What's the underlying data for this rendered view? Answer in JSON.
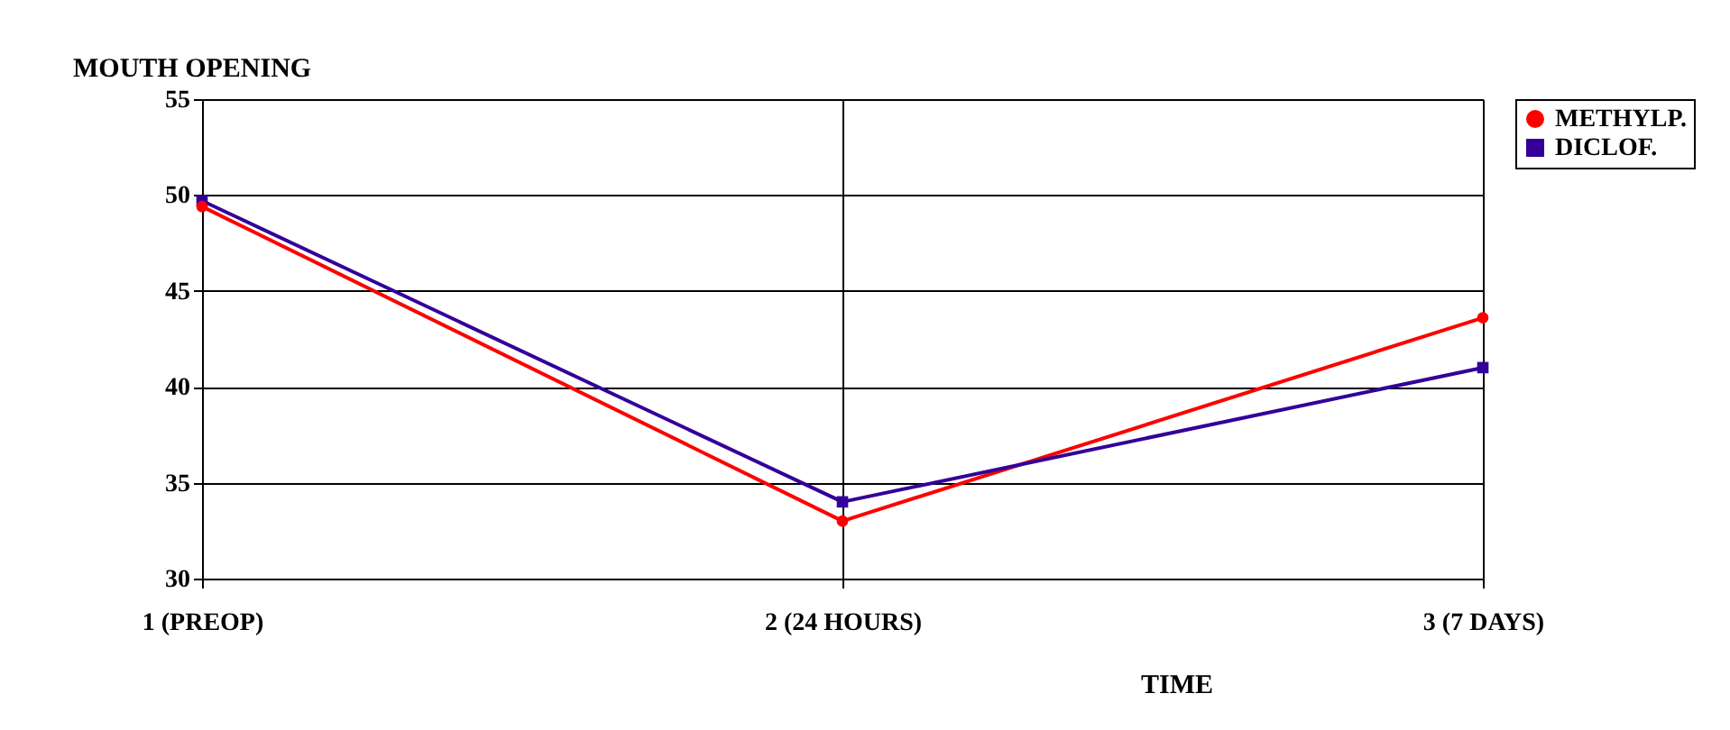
{
  "chart_data": {
    "type": "line",
    "ylabel": "MOUTH OPENING",
    "xlabel": "TIME",
    "categories": [
      "1 (PREOP)",
      "2 (24 HOURS)",
      "3 (7 DAYS)"
    ],
    "series": [
      {
        "name": "METHYLP.",
        "color": "#ff0000",
        "marker": "circle",
        "values": [
          49.4,
          33.0,
          43.6
        ]
      },
      {
        "name": "DICLOF.",
        "color": "#330099",
        "marker": "square",
        "values": [
          49.7,
          34.0,
          41.0
        ]
      }
    ],
    "ylim": [
      30,
      55
    ],
    "yticks": [
      30,
      35,
      40,
      45,
      50,
      55
    ],
    "grid": true,
    "legend": "right",
    "line_style": "solid"
  }
}
